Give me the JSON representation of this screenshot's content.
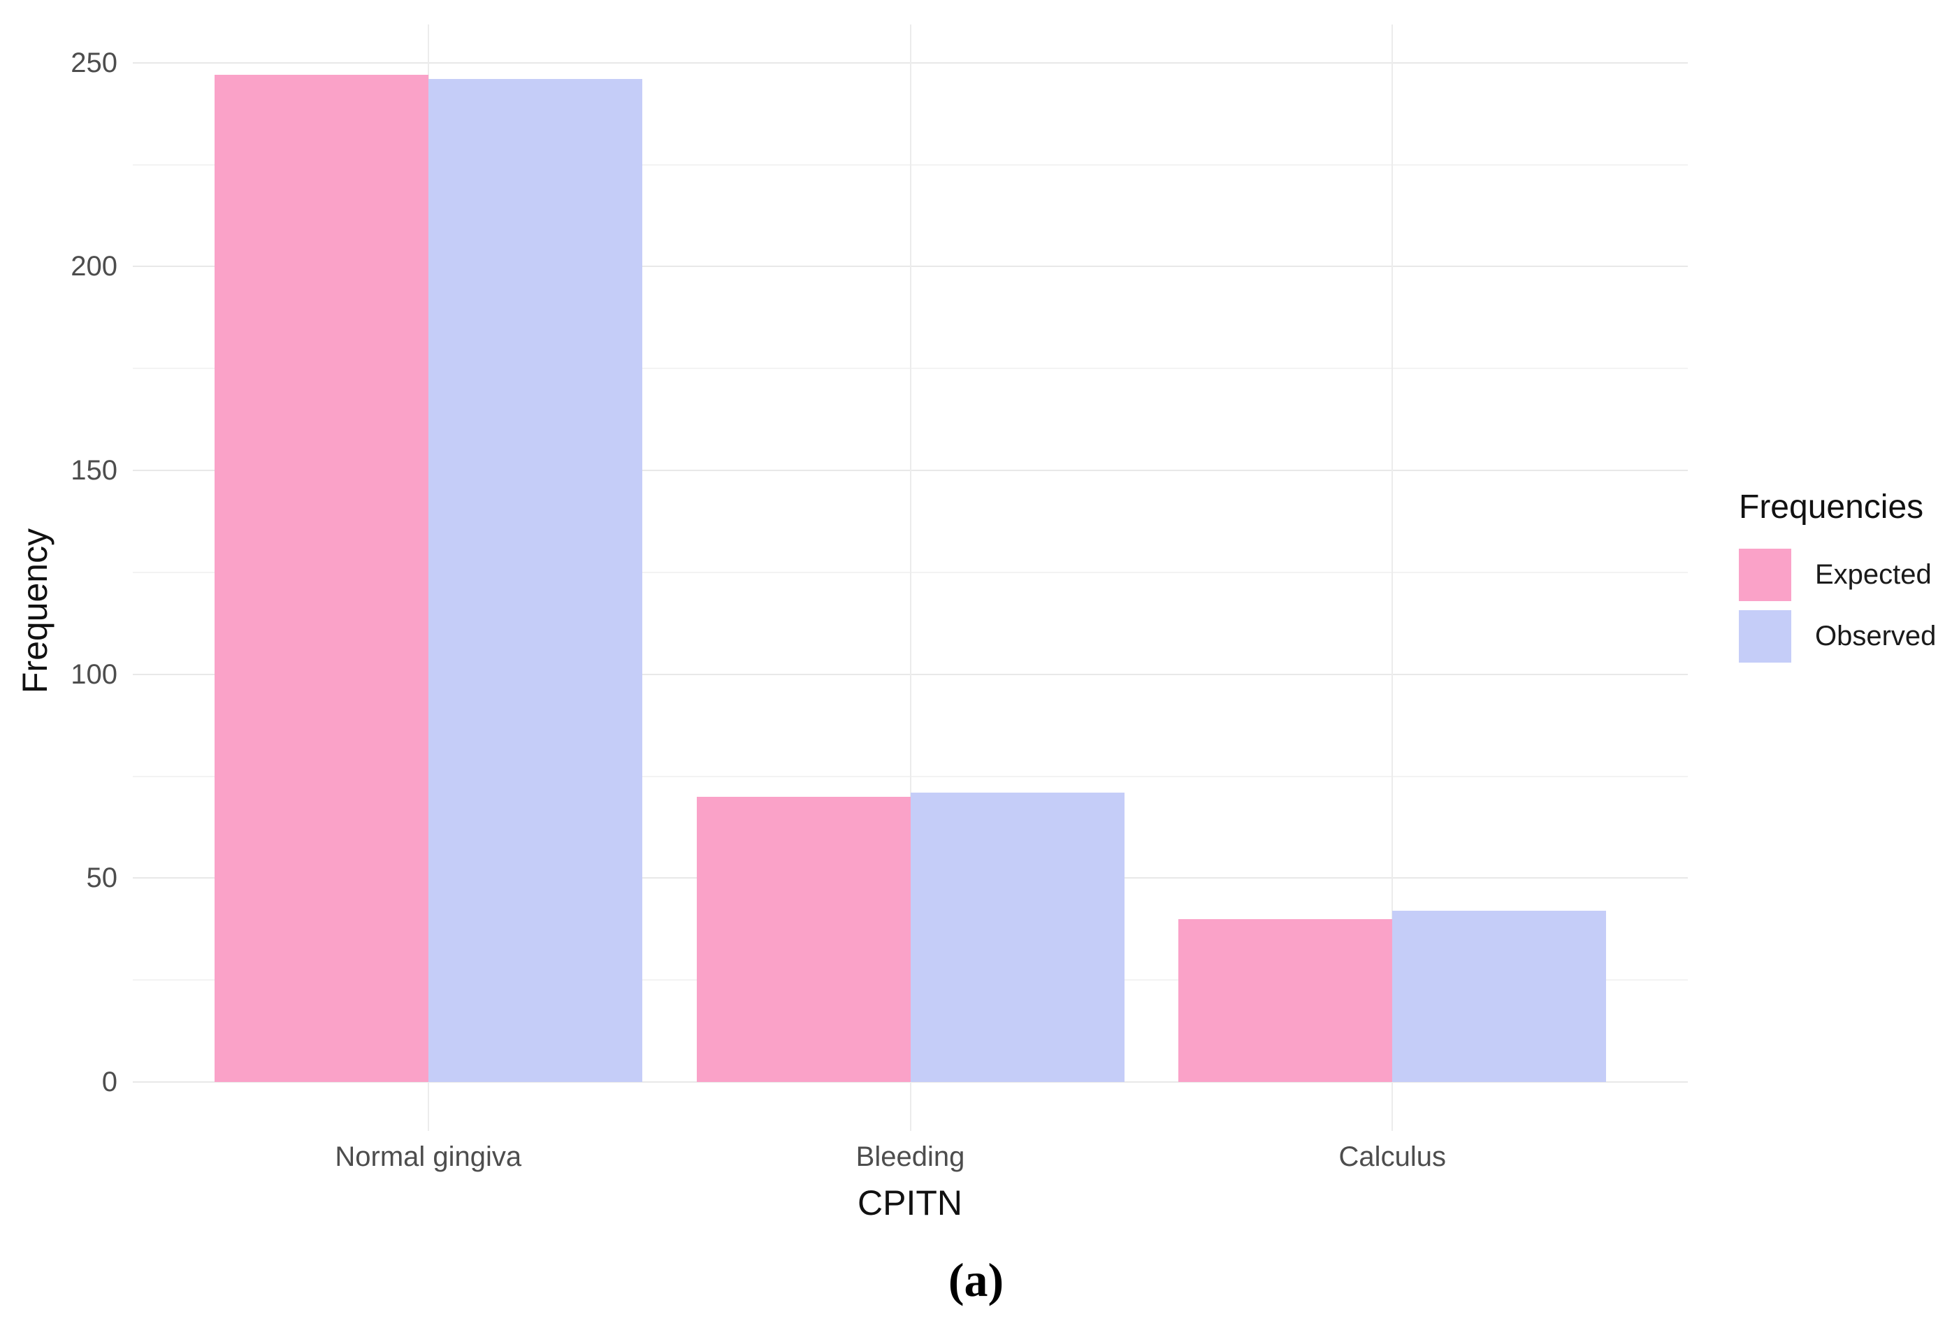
{
  "chart_data": {
    "type": "bar",
    "title": "",
    "categories": [
      "Normal gingiva",
      "Bleeding",
      "Calculus"
    ],
    "series": [
      {
        "name": "Expected",
        "color": "#FAA2C8",
        "values": [
          247,
          70,
          40
        ]
      },
      {
        "name": "Observed",
        "color": "#C5CDF8",
        "values": [
          246,
          71,
          42
        ]
      }
    ],
    "xlabel": "CPITN",
    "ylabel": "Frequency",
    "ylim": [
      0,
      250
    ],
    "yticks": [
      0,
      50,
      100,
      150,
      200,
      250
    ],
    "yticks_minor": [
      25,
      75,
      125,
      175,
      225
    ],
    "grid": "on",
    "legend": {
      "title": "Frequencies",
      "position": "right"
    },
    "caption": "(a)"
  }
}
